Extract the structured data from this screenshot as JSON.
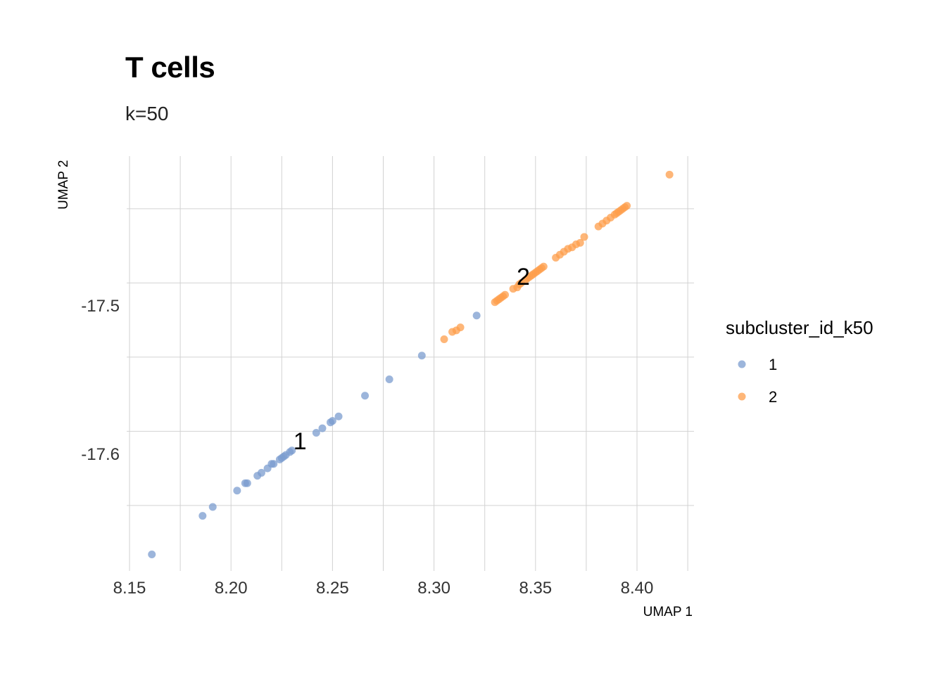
{
  "chart_data": {
    "type": "scatter",
    "title": "T cells",
    "subtitle": "k=50",
    "xlabel": "UMAP 1",
    "ylabel": "UMAP 2",
    "xlim": [
      8.15,
      8.425
    ],
    "ylim": [
      -17.685,
      -17.395
    ],
    "x_ticks": [
      8.15,
      8.2,
      8.25,
      8.3,
      8.35,
      8.4
    ],
    "x_tick_labels": [
      "8.15",
      "8.20",
      "8.25",
      "8.30",
      "8.35",
      "8.40"
    ],
    "y_ticks": [
      -17.5,
      -17.6
    ],
    "y_tick_labels": [
      "-17.5",
      "-17.6"
    ],
    "grid": true,
    "legend": {
      "title": "subcluster_id_k50",
      "position": "right",
      "entries": [
        {
          "label": "1",
          "color": "#7b9ccf"
        },
        {
          "label": "2",
          "color": "#fd9d4b"
        }
      ]
    },
    "series": [
      {
        "name": "1",
        "color": "#7b9ccf",
        "cluster_label": "1",
        "cluster_label_pos": [
          8.234,
          -17.593
        ],
        "points": [
          [
            8.161,
            -17.668
          ],
          [
            8.186,
            -17.642
          ],
          [
            8.191,
            -17.636
          ],
          [
            8.203,
            -17.625
          ],
          [
            8.207,
            -17.62
          ],
          [
            8.208,
            -17.62
          ],
          [
            8.213,
            -17.615
          ],
          [
            8.215,
            -17.613
          ],
          [
            8.218,
            -17.61
          ],
          [
            8.22,
            -17.607
          ],
          [
            8.221,
            -17.607
          ],
          [
            8.224,
            -17.604
          ],
          [
            8.225,
            -17.603
          ],
          [
            8.226,
            -17.602
          ],
          [
            8.227,
            -17.601
          ],
          [
            8.229,
            -17.599
          ],
          [
            8.23,
            -17.598
          ],
          [
            8.242,
            -17.586
          ],
          [
            8.245,
            -17.583
          ],
          [
            8.249,
            -17.579
          ],
          [
            8.25,
            -17.578
          ],
          [
            8.253,
            -17.575
          ],
          [
            8.266,
            -17.561
          ],
          [
            8.278,
            -17.55
          ],
          [
            8.294,
            -17.534
          ],
          [
            8.321,
            -17.507
          ]
        ]
      },
      {
        "name": "2",
        "color": "#fd9d4b",
        "cluster_label": "2",
        "cluster_label_pos": [
          8.344,
          -17.482
        ],
        "points": [
          [
            8.305,
            -17.523
          ],
          [
            8.309,
            -17.518
          ],
          [
            8.311,
            -17.517
          ],
          [
            8.313,
            -17.515
          ],
          [
            8.33,
            -17.498
          ],
          [
            8.331,
            -17.497
          ],
          [
            8.332,
            -17.496
          ],
          [
            8.333,
            -17.495
          ],
          [
            8.334,
            -17.494
          ],
          [
            8.335,
            -17.493
          ],
          [
            8.339,
            -17.489
          ],
          [
            8.341,
            -17.488
          ],
          [
            8.342,
            -17.486
          ],
          [
            8.343,
            -17.485
          ],
          [
            8.345,
            -17.483
          ],
          [
            8.346,
            -17.482
          ],
          [
            8.347,
            -17.481
          ],
          [
            8.348,
            -17.48
          ],
          [
            8.349,
            -17.479
          ],
          [
            8.35,
            -17.478
          ],
          [
            8.351,
            -17.477
          ],
          [
            8.352,
            -17.476
          ],
          [
            8.353,
            -17.475
          ],
          [
            8.354,
            -17.474
          ],
          [
            8.36,
            -17.468
          ],
          [
            8.362,
            -17.466
          ],
          [
            8.364,
            -17.464
          ],
          [
            8.366,
            -17.462
          ],
          [
            8.368,
            -17.461
          ],
          [
            8.37,
            -17.459
          ],
          [
            8.372,
            -17.458
          ],
          [
            8.374,
            -17.454
          ],
          [
            8.381,
            -17.447
          ],
          [
            8.383,
            -17.445
          ],
          [
            8.385,
            -17.443
          ],
          [
            8.387,
            -17.441
          ],
          [
            8.389,
            -17.439
          ],
          [
            8.39,
            -17.438
          ],
          [
            8.391,
            -17.437
          ],
          [
            8.392,
            -17.436
          ],
          [
            8.393,
            -17.435
          ],
          [
            8.394,
            -17.434
          ],
          [
            8.395,
            -17.433
          ],
          [
            8.416,
            -17.412
          ]
        ]
      }
    ]
  }
}
